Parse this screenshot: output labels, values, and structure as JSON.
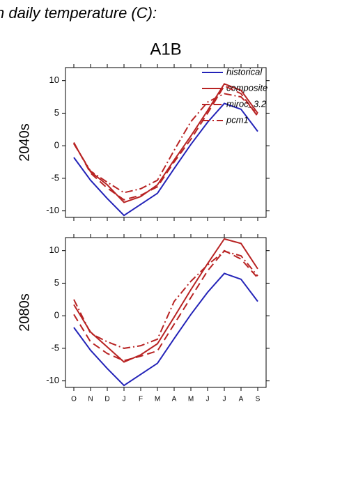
{
  "title": "n daily temperature (C):",
  "subtitle": "A1B",
  "chart_data": [
    {
      "type": "line",
      "y_label": "2040s",
      "categories": [
        null,
        null,
        null,
        null,
        null,
        null,
        null,
        null,
        null,
        null,
        null,
        null
      ],
      "ylim": [
        -11,
        12
      ],
      "yticks": [
        -10,
        -5,
        0,
        5,
        10
      ],
      "legend": "upper right",
      "series": [
        {
          "name": "historical",
          "color": "#2323b8",
          "dash": "solid",
          "values": [
            -1.8,
            -5.3,
            -8.1,
            -10.7,
            -9.0,
            -7.3,
            -3.5,
            0.2,
            3.6,
            6.5,
            5.6,
            2.2
          ]
        },
        {
          "name": "composite",
          "color": "#b82323",
          "dash": "solid",
          "values": [
            0.4,
            -4.0,
            -6.0,
            -8.7,
            -7.8,
            -6.0,
            -2.2,
            1.5,
            5.4,
            9.5,
            8.5,
            5.0
          ]
        },
        {
          "name": "miroc_3.2",
          "color": "#b82323",
          "dash": "dashed",
          "values": [
            0.5,
            -4.2,
            -6.5,
            -8.3,
            -7.6,
            -6.3,
            -2.5,
            1.0,
            5.0,
            9.2,
            8.0,
            4.5
          ]
        },
        {
          "name": "pcm1",
          "color": "#b82323",
          "dash": "dashdot",
          "values": [
            0.3,
            -3.9,
            -5.6,
            -7.2,
            -6.6,
            -5.3,
            -0.7,
            3.7,
            6.7,
            8.0,
            7.5,
            4.8
          ]
        }
      ]
    },
    {
      "type": "line",
      "y_label": "2080s",
      "categories": [
        "O",
        "N",
        "D",
        "J",
        "F",
        "M",
        "A",
        "M",
        "J",
        "J",
        "A",
        "S"
      ],
      "ylim": [
        -11,
        12
      ],
      "yticks": [
        -10,
        -5,
        0,
        5,
        10
      ],
      "series": [
        {
          "color": "#2323b8",
          "dash": "solid",
          "values": [
            -1.8,
            -5.3,
            -8.1,
            -10.7,
            -9.0,
            -7.3,
            -3.5,
            0.2,
            3.6,
            6.5,
            5.6,
            2.2
          ]
        },
        {
          "color": "#b82323",
          "dash": "solid",
          "values": [
            1.7,
            -2.5,
            -4.8,
            -7.1,
            -6.0,
            -4.3,
            -0.2,
            4.0,
            8.0,
            11.8,
            11.1,
            7.2
          ]
        },
        {
          "color": "#b82323",
          "dash": "dashed",
          "values": [
            0.2,
            -4.0,
            -5.8,
            -6.9,
            -6.2,
            -5.4,
            -1.3,
            2.8,
            6.9,
            10.0,
            8.7,
            5.8
          ]
        },
        {
          "color": "#b82323",
          "dash": "dashdot",
          "values": [
            2.5,
            -2.7,
            -4.0,
            -5.0,
            -4.6,
            -3.6,
            2.2,
            5.3,
            7.8,
            9.9,
            9.2,
            6.1
          ]
        }
      ]
    }
  ]
}
